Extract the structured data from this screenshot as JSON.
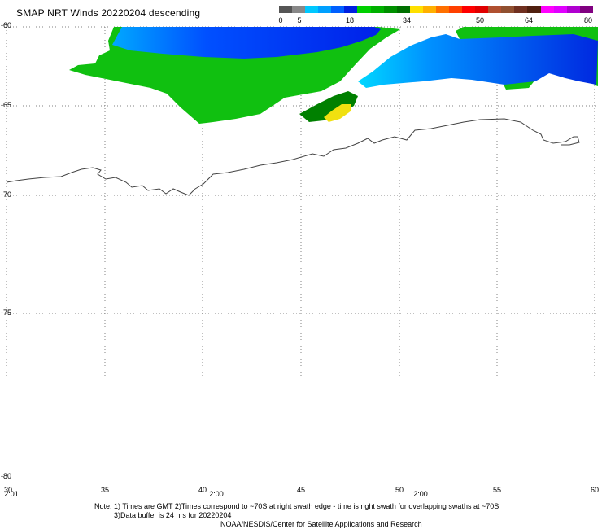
{
  "header": {
    "title": "SMAP NRT Winds  20220204 descending"
  },
  "colorbar": {
    "colors": [
      "#555555",
      "#888888",
      "#00c8ff",
      "#00a0ff",
      "#0060ff",
      "#0020e0",
      "#00d000",
      "#00b000",
      "#009000",
      "#007000",
      "#ffe000",
      "#ffb000",
      "#ff7000",
      "#ff4000",
      "#ff0000",
      "#e00000",
      "#b05030",
      "#905030",
      "#703020",
      "#502010",
      "#ff00ff",
      "#e000ff",
      "#b000d0",
      "#800080"
    ],
    "ticks": [
      "0",
      "5",
      "18",
      "34",
      "50",
      "64",
      "80"
    ]
  },
  "map": {
    "lat_labels": [
      "-60",
      "-65",
      "-70",
      "-75",
      "-80"
    ],
    "lon_labels": [
      "30",
      "35",
      "40",
      "45",
      "50",
      "55",
      "60"
    ],
    "time_labels": [
      "2:01",
      "2:00",
      "2:00"
    ],
    "coastline_color": "#444444",
    "grid_color": "#808080"
  },
  "footer": {
    "note_line1": "Note: 1) Times are GMT 2)Times correspond to ~70S at right swath edge - time is right swath for overlapping swaths at ~70S",
    "note_line2": "3)Data buffer is 24 hrs for 20220204",
    "credit": "NOAA/NESDIS/Center for Satellite Applications and Research"
  }
}
